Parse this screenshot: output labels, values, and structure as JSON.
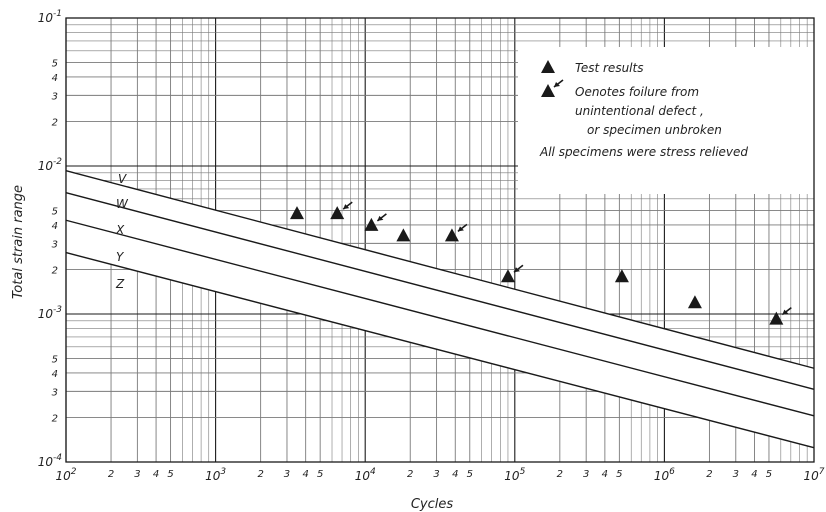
{
  "chart_data": {
    "type": "scatter",
    "xscale": "log",
    "yscale": "log",
    "xlim": [
      100,
      10000000
    ],
    "ylim": [
      0.0001,
      0.1
    ],
    "grid": true,
    "xlabel": "Cycles",
    "ylabel": "Total strain range",
    "x_tick_labels": [
      {
        "value": 100,
        "base": "10",
        "exp": "2"
      },
      {
        "value": 1000,
        "base": "10",
        "exp": "3"
      },
      {
        "value": 10000,
        "base": "10",
        "exp": "4"
      },
      {
        "value": 100000,
        "base": "10",
        "exp": "5"
      },
      {
        "value": 1000000,
        "base": "10",
        "exp": "6"
      },
      {
        "value": 10000000,
        "base": "10",
        "exp": "7"
      }
    ],
    "y_tick_labels": [
      {
        "value": 0.0001,
        "base": "10",
        "exp": "-4"
      },
      {
        "value": 0.001,
        "base": "10",
        "exp": "-3"
      },
      {
        "value": 0.01,
        "base": "10",
        "exp": "-2"
      },
      {
        "value": 0.1,
        "base": "10",
        "exp": "-1"
      }
    ],
    "minor_tick_digits": [
      "2",
      "3",
      "4",
      "5"
    ],
    "design_lines": [
      {
        "name": "V",
        "x": [
          100,
          10000000
        ],
        "y": [
          0.0093,
          0.00043
        ]
      },
      {
        "name": "W",
        "x": [
          100,
          10000000
        ],
        "y": [
          0.0066,
          0.00031
        ]
      },
      {
        "name": "X",
        "x": [
          100,
          10000000
        ],
        "y": [
          0.0043,
          0.000205
        ]
      },
      {
        "name": "Y",
        "x": [
          100,
          10000000
        ],
        "y": [
          0.0026,
          0.000125
        ]
      },
      {
        "name": "Z",
        "x": [
          100,
          10000000
        ],
        "y": [
          0.0026,
          0.000125
        ]
      }
    ],
    "series": [
      {
        "name": "Test results",
        "points": [
          {
            "x": 3500,
            "y": 0.0048,
            "arrow": false
          },
          {
            "x": 6500,
            "y": 0.0048,
            "arrow": true
          },
          {
            "x": 11000,
            "y": 0.004,
            "arrow": true
          },
          {
            "x": 18000,
            "y": 0.0034,
            "arrow": false
          },
          {
            "x": 38000,
            "y": 0.0034,
            "arrow": true
          },
          {
            "x": 90000,
            "y": 0.0018,
            "arrow": true
          },
          {
            "x": 520000,
            "y": 0.0018,
            "arrow": false
          },
          {
            "x": 1600000,
            "y": 0.0012,
            "arrow": false
          },
          {
            "x": 5600000,
            "y": 0.00093,
            "arrow": true
          }
        ]
      }
    ],
    "legend": {
      "position": "top-right",
      "entries": [
        {
          "marker": "triangle",
          "text": "Test results"
        },
        {
          "marker": "triangle-arrow",
          "text": "Oenotes foilure from"
        },
        {
          "marker": "none",
          "text": "unintentional defect ,"
        },
        {
          "marker": "none",
          "text": "or specimen unbroken"
        }
      ],
      "note": "All specimens were stress relieved"
    }
  },
  "colors": {
    "ink": "#1a1a1a",
    "grid": "#7a7a7a",
    "background": "#ffffff"
  }
}
